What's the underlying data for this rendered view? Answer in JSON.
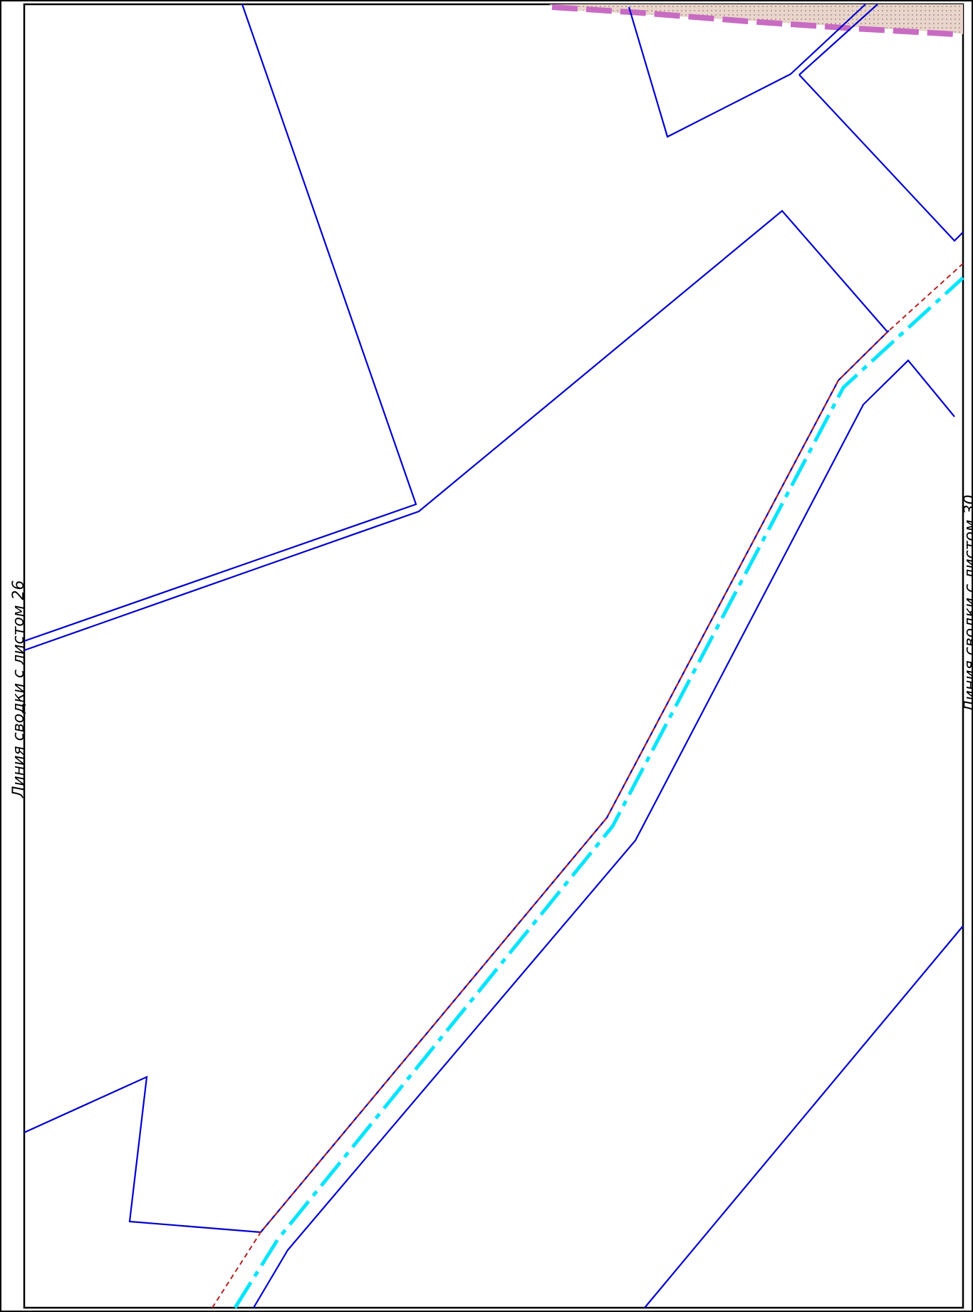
{
  "labels": {
    "left_margin": "Линия сводки с листом 26",
    "right_margin": "Линия сводки с листом 30"
  },
  "colors": {
    "parcel_boundary": "#0000cc",
    "channel_line": "#00e5ff",
    "red_line": "#b22222",
    "zone_hatch": "#c86bc3",
    "frame": "#000000"
  }
}
